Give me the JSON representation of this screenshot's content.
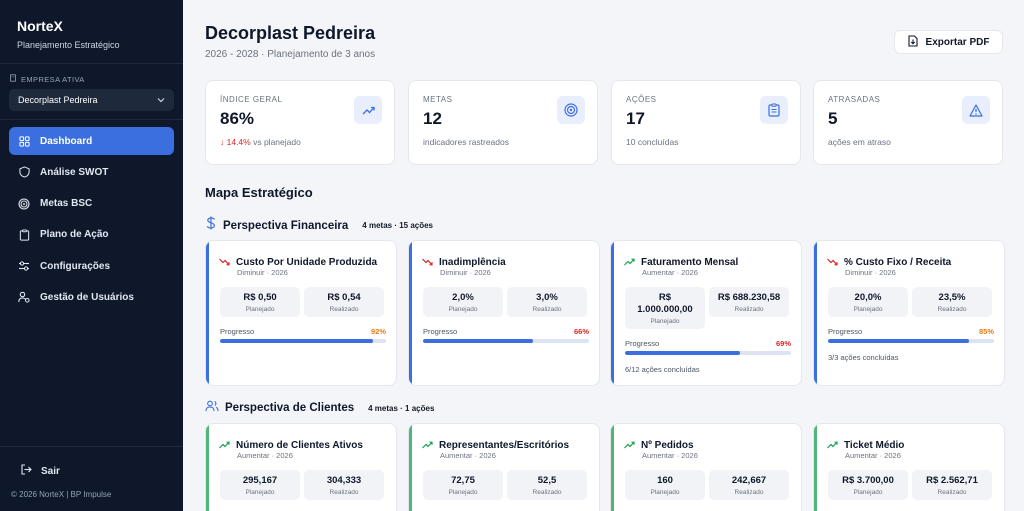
{
  "sidebar": {
    "brand": "NorteX",
    "brand_sub": "Planejamento Estratégico",
    "company_label": "EMPRESA ATIVA",
    "company_value": "Decorplast Pedreira",
    "items": [
      {
        "label": "Dashboard",
        "icon": "grid-icon",
        "active": true
      },
      {
        "label": "Análise SWOT",
        "icon": "shield-icon"
      },
      {
        "label": "Metas BSC",
        "icon": "target-icon"
      },
      {
        "label": "Plano de Ação",
        "icon": "clipboard-icon"
      },
      {
        "label": "Configurações",
        "icon": "sliders-icon"
      },
      {
        "label": "Gestão de Usuários",
        "icon": "users-cog-icon"
      }
    ],
    "logout": "Sair",
    "footer": "© 2026 NorteX | BP Impulse"
  },
  "header": {
    "title": "Decorplast Pedreira",
    "subtitle": "2026 - 2028 · Planejamento de 3 anos",
    "export_label": "Exportar PDF"
  },
  "kpis": [
    {
      "label": "ÍNDICE GERAL",
      "value": "86%",
      "delta": "↓ 14.4%",
      "note": "vs planejado",
      "icon": "trend-up-icon"
    },
    {
      "label": "METAS",
      "value": "12",
      "note": "indicadores rastreados",
      "icon": "target-icon"
    },
    {
      "label": "AÇÕES",
      "value": "17",
      "note": "10 concluídas",
      "icon": "clipboard-icon"
    },
    {
      "label": "ATRASADAS",
      "value": "5",
      "note": "ações em atraso",
      "icon": "warning-icon"
    }
  ],
  "map_title": "Mapa Estratégico",
  "perspectives": [
    {
      "name": "Perspectiva Financeira",
      "meta": "4 metas · 15 ações",
      "icon": "dollar-icon",
      "cards": [
        {
          "title": "Custo Por Unidade Produzida",
          "sub": "Diminuir · 2026",
          "trend": "down",
          "planned": "R$ 0,50",
          "realized": "R$ 0,54",
          "progress_label": "Progresso",
          "progress_text": "92%",
          "progress": 92,
          "pct_color": "#ea7a12",
          "actions": ""
        },
        {
          "title": "Inadimplência",
          "sub": "Diminuir · 2026",
          "trend": "down",
          "planned": "2,0%",
          "realized": "3,0%",
          "progress_label": "Progresso",
          "progress_text": "66%",
          "progress": 66,
          "pct_color": "#dc2626",
          "actions": ""
        },
        {
          "title": "Faturamento Mensal",
          "sub": "Aumentar · 2026",
          "trend": "up",
          "planned": "R$ 1.000.000,00",
          "realized": "R$ 688.230,58",
          "progress_label": "Progresso",
          "progress_text": "69%",
          "progress": 69,
          "pct_color": "#dc2626",
          "actions": "6/12 ações concluídas"
        },
        {
          "title": "% Custo Fixo / Receita",
          "sub": "Diminuir · 2026",
          "trend": "down",
          "planned": "20,0%",
          "realized": "23,5%",
          "progress_label": "Progresso",
          "progress_text": "85%",
          "progress": 85,
          "pct_color": "#ea7a12",
          "actions": "3/3 ações concluídas"
        }
      ]
    },
    {
      "name": "Perspectiva de Clientes",
      "meta": "4 metas · 1 ações",
      "icon": "users-icon",
      "cards": [
        {
          "title": "Número de Clientes Ativos",
          "sub": "Aumentar · 2026",
          "trend": "up",
          "planned": "295,167",
          "realized": "304,333"
        },
        {
          "title": "Representantes/Escritórios",
          "sub": "Aumentar · 2026",
          "trend": "up",
          "planned": "72,75",
          "realized": "52,5"
        },
        {
          "title": "Nº Pedidos",
          "sub": "Aumentar · 2026",
          "trend": "up",
          "planned": "160",
          "realized": "242,667"
        },
        {
          "title": "Ticket Médio",
          "sub": "Aumentar · 2026",
          "trend": "up",
          "planned": "R$ 3.700,00",
          "realized": "R$ 2.562,71"
        }
      ]
    }
  ],
  "labels": {
    "planned": "Planejado",
    "realized": "Realizado"
  },
  "colors": {
    "accent": "#3b6fe0",
    "green_accent": "#4fb67a",
    "down": "#dc2626",
    "up": "#16a34a"
  }
}
